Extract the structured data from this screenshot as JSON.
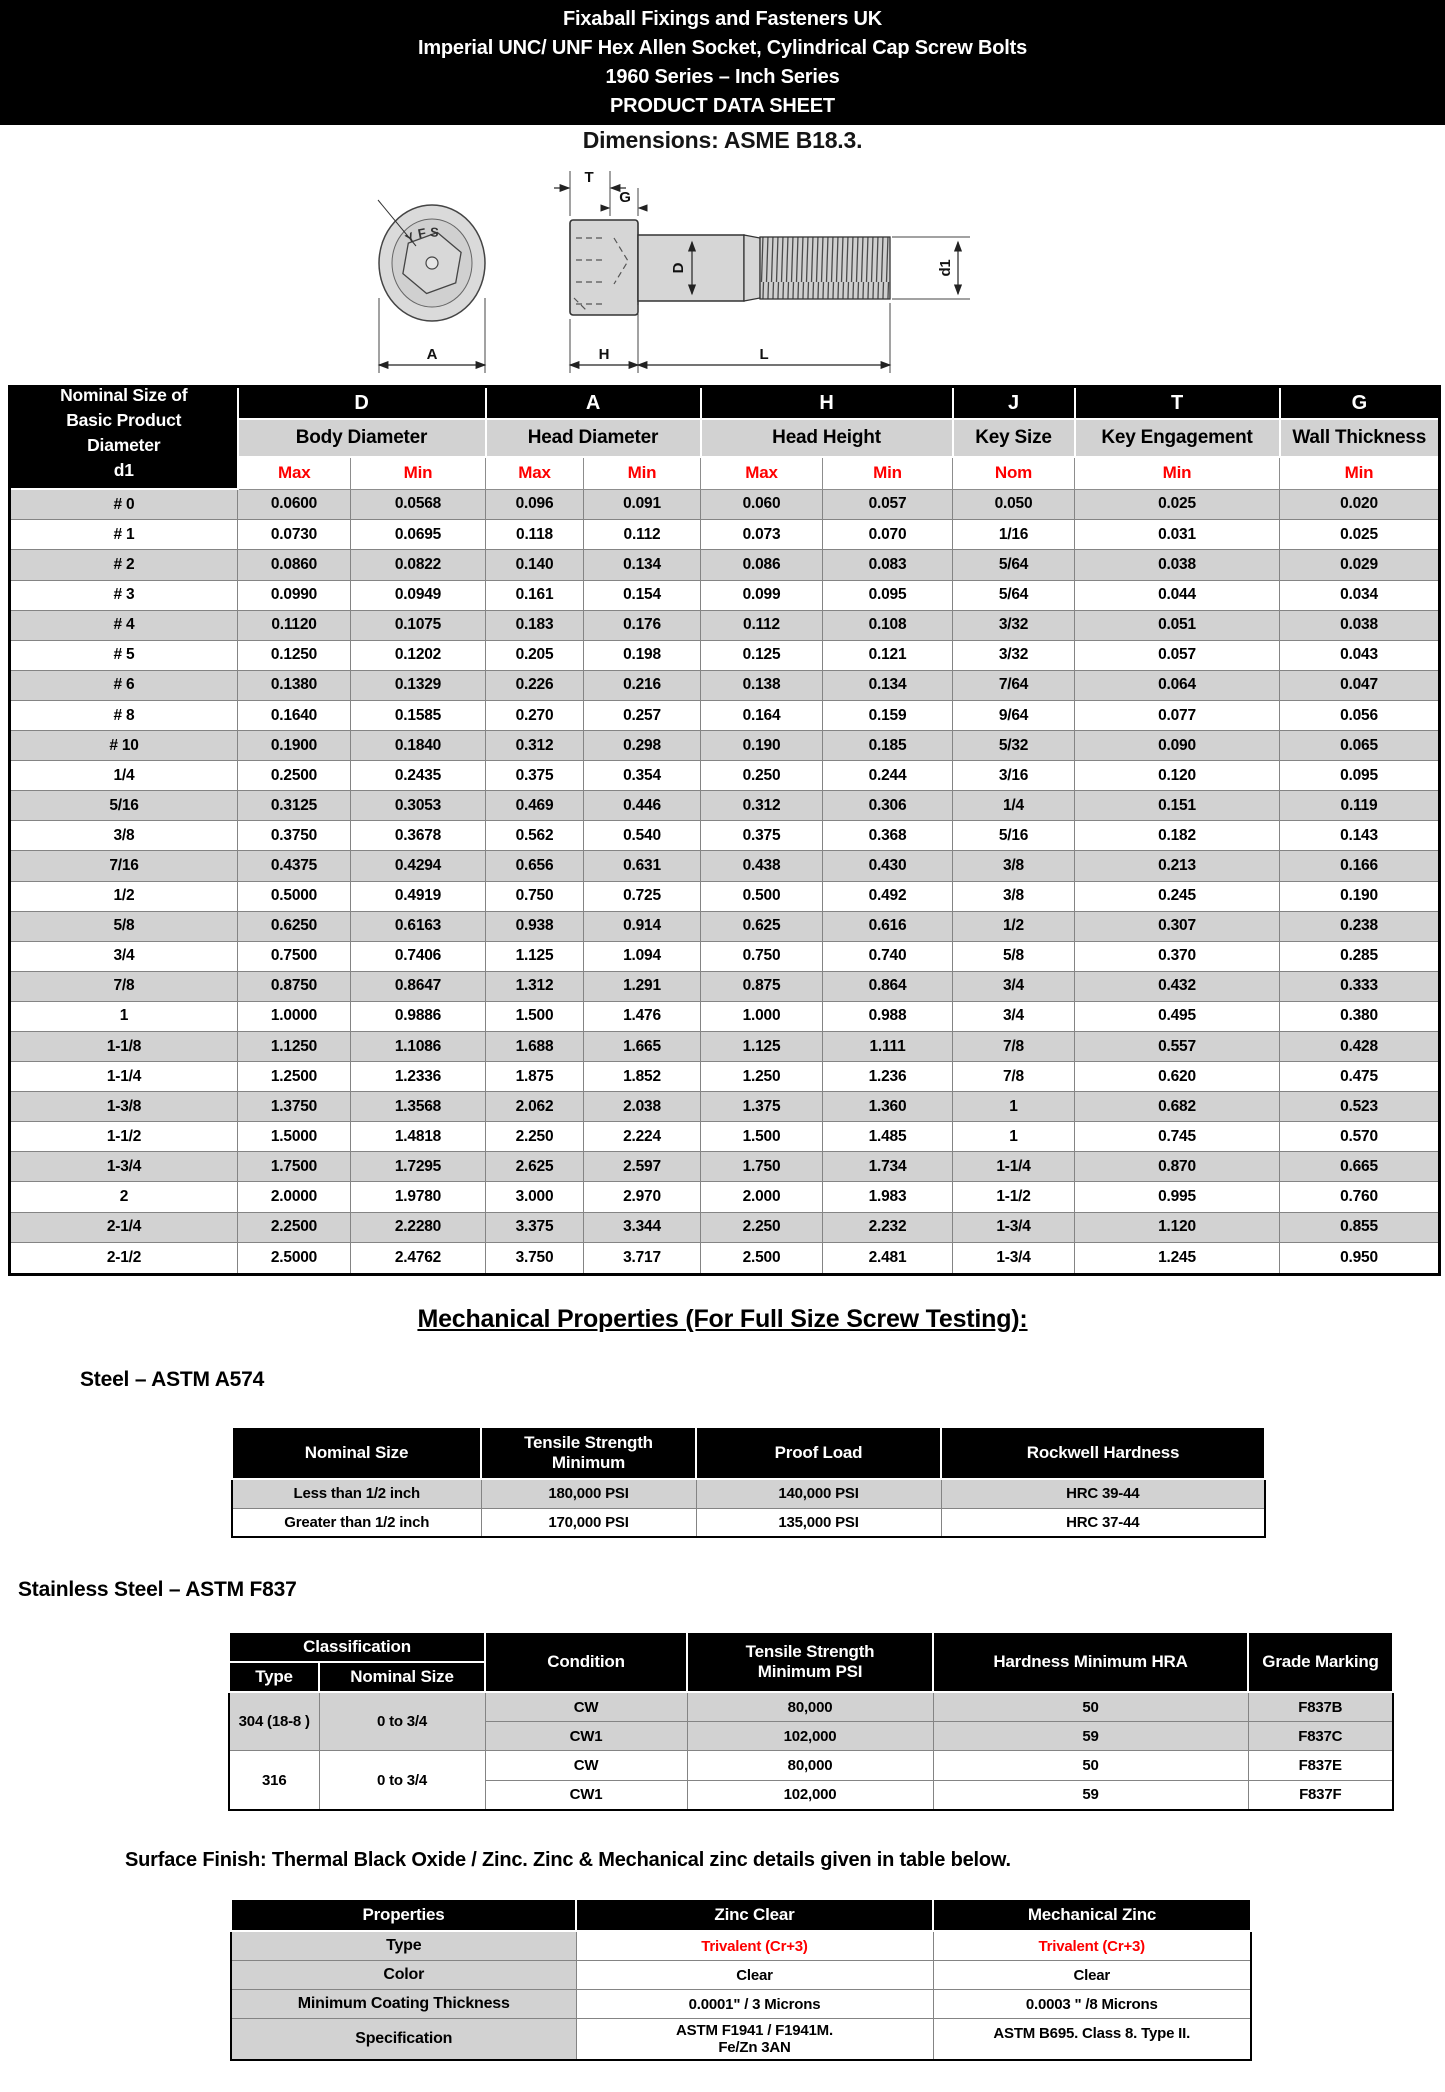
{
  "colors": {
    "accent_red": "#fe0000",
    "header_bg": "#000000",
    "row_gray": "#d2d2d2"
  },
  "header": {
    "line1": "Fixaball Fixings and Fasteners UK",
    "line2": "Imperial UNC/ UNF Hex Allen Socket, Cylindrical Cap Screw Bolts",
    "line3": "1960 Series – Inch Series",
    "line4": "PRODUCT DATA SHEET",
    "dimensions_note": "Dimensions: ASME B18.3."
  },
  "drawing": {
    "marking": "YFS",
    "labels": {
      "T": "T",
      "G": "G",
      "D": "D",
      "d1": "d1",
      "A": "A",
      "H": "H",
      "L": "L"
    }
  },
  "dim_table": {
    "corner_header": "Nominal Size of\nBasic Product\nDiameter\nd1",
    "groups": [
      {
        "letter": "D",
        "name": "Body Diameter"
      },
      {
        "letter": "A",
        "name": "Head Diameter"
      },
      {
        "letter": "H",
        "name": "Head Height"
      },
      {
        "letter": "J",
        "name": "Key Size"
      },
      {
        "letter": "T",
        "name": "Key Engagement"
      },
      {
        "letter": "G",
        "name": "Wall Thickness"
      }
    ],
    "subheads": [
      "Max",
      "Min",
      "Max",
      "Min",
      "Max",
      "Min",
      "Nom",
      "Min",
      "Min"
    ],
    "rows": [
      [
        "# 0",
        "0.0600",
        "0.0568",
        "0.096",
        "0.091",
        "0.060",
        "0.057",
        "0.050",
        "0.025",
        "0.020"
      ],
      [
        "# 1",
        "0.0730",
        "0.0695",
        "0.118",
        "0.112",
        "0.073",
        "0.070",
        "1/16",
        "0.031",
        "0.025"
      ],
      [
        "# 2",
        "0.0860",
        "0.0822",
        "0.140",
        "0.134",
        "0.086",
        "0.083",
        "5/64",
        "0.038",
        "0.029"
      ],
      [
        "# 3",
        "0.0990",
        "0.0949",
        "0.161",
        "0.154",
        "0.099",
        "0.095",
        "5/64",
        "0.044",
        "0.034"
      ],
      [
        "# 4",
        "0.1120",
        "0.1075",
        "0.183",
        "0.176",
        "0.112",
        "0.108",
        "3/32",
        "0.051",
        "0.038"
      ],
      [
        "# 5",
        "0.1250",
        "0.1202",
        "0.205",
        "0.198",
        "0.125",
        "0.121",
        "3/32",
        "0.057",
        "0.043"
      ],
      [
        "# 6",
        "0.1380",
        "0.1329",
        "0.226",
        "0.216",
        "0.138",
        "0.134",
        "7/64",
        "0.064",
        "0.047"
      ],
      [
        "# 8",
        "0.1640",
        "0.1585",
        "0.270",
        "0.257",
        "0.164",
        "0.159",
        "9/64",
        "0.077",
        "0.056"
      ],
      [
        "# 10",
        "0.1900",
        "0.1840",
        "0.312",
        "0.298",
        "0.190",
        "0.185",
        "5/32",
        "0.090",
        "0.065"
      ],
      [
        "1/4",
        "0.2500",
        "0.2435",
        "0.375",
        "0.354",
        "0.250",
        "0.244",
        "3/16",
        "0.120",
        "0.095"
      ],
      [
        "5/16",
        "0.3125",
        "0.3053",
        "0.469",
        "0.446",
        "0.312",
        "0.306",
        "1/4",
        "0.151",
        "0.119"
      ],
      [
        "3/8",
        "0.3750",
        "0.3678",
        "0.562",
        "0.540",
        "0.375",
        "0.368",
        "5/16",
        "0.182",
        "0.143"
      ],
      [
        "7/16",
        "0.4375",
        "0.4294",
        "0.656",
        "0.631",
        "0.438",
        "0.430",
        "3/8",
        "0.213",
        "0.166"
      ],
      [
        "1/2",
        "0.5000",
        "0.4919",
        "0.750",
        "0.725",
        "0.500",
        "0.492",
        "3/8",
        "0.245",
        "0.190"
      ],
      [
        "5/8",
        "0.6250",
        "0.6163",
        "0.938",
        "0.914",
        "0.625",
        "0.616",
        "1/2",
        "0.307",
        "0.238"
      ],
      [
        "3/4",
        "0.7500",
        "0.7406",
        "1.125",
        "1.094",
        "0.750",
        "0.740",
        "5/8",
        "0.370",
        "0.285"
      ],
      [
        "7/8",
        "0.8750",
        "0.8647",
        "1.312",
        "1.291",
        "0.875",
        "0.864",
        "3/4",
        "0.432",
        "0.333"
      ],
      [
        "1",
        "1.0000",
        "0.9886",
        "1.500",
        "1.476",
        "1.000",
        "0.988",
        "3/4",
        "0.495",
        "0.380"
      ],
      [
        "1-1/8",
        "1.1250",
        "1.1086",
        "1.688",
        "1.665",
        "1.125",
        "1.111",
        "7/8",
        "0.557",
        "0.428"
      ],
      [
        "1-1/4",
        "1.2500",
        "1.2336",
        "1.875",
        "1.852",
        "1.250",
        "1.236",
        "7/8",
        "0.620",
        "0.475"
      ],
      [
        "1-3/8",
        "1.3750",
        "1.3568",
        "2.062",
        "2.038",
        "1.375",
        "1.360",
        "1",
        "0.682",
        "0.523"
      ],
      [
        "1-1/2",
        "1.5000",
        "1.4818",
        "2.250",
        "2.224",
        "1.500",
        "1.485",
        "1",
        "0.745",
        "0.570"
      ],
      [
        "1-3/4",
        "1.7500",
        "1.7295",
        "2.625",
        "2.597",
        "1.750",
        "1.734",
        "1-1/4",
        "0.870",
        "0.665"
      ],
      [
        "2",
        "2.0000",
        "1.9780",
        "3.000",
        "2.970",
        "2.000",
        "1.983",
        "1-1/2",
        "0.995",
        "0.760"
      ],
      [
        "2-1/4",
        "2.2500",
        "2.2280",
        "3.375",
        "3.344",
        "2.250",
        "2.232",
        "1-3/4",
        "1.120",
        "0.855"
      ],
      [
        "2-1/2",
        "2.5000",
        "2.4762",
        "3.750",
        "3.717",
        "2.500",
        "2.481",
        "1-3/4",
        "1.245",
        "0.950"
      ]
    ]
  },
  "sections": {
    "mech_heading": "Mechanical Properties (For Full Size Screw Testing): ",
    "steel_heading": "Steel – ASTM A574",
    "stainless_heading": "Stainless Steel – ASTM F837",
    "surface_note": "Surface Finish: Thermal Black Oxide / Zinc. Zinc & Mechanical zinc details given in table below."
  },
  "steel_table": {
    "headers": [
      "Nominal Size",
      "Tensile Strength\nMinimum",
      "Proof Load",
      "Rockwell Hardness"
    ],
    "rows": [
      [
        "Less than 1/2 inch",
        "180,000 PSI",
        "140,000 PSI",
        "HRC 39-44"
      ],
      [
        "Greater than 1/2 inch",
        "170,000 PSI",
        "135,000 PSI",
        "HRC 37-44"
      ]
    ]
  },
  "stainless_table": {
    "classification_label": "Classification",
    "type_label": "Type",
    "nominal_label": "Nominal Size",
    "condition_label": "Condition",
    "tensile_label": "Tensile Strength\nMinimum PSI",
    "hardness_label": "Hardness Minimum HRA",
    "grade_label": "Grade Marking",
    "groups": [
      {
        "type": "304 (18-8 )",
        "size": "0 to 3/4",
        "rows": [
          {
            "condition": "CW",
            "tensile": "80,000",
            "hardness": "50",
            "grade": "F837B"
          },
          {
            "condition": "CW1",
            "tensile": "102,000",
            "hardness": "59",
            "grade": "F837C"
          }
        ]
      },
      {
        "type": "316",
        "size": "0 to 3/4",
        "rows": [
          {
            "condition": "CW",
            "tensile": "80,000",
            "hardness": "50",
            "grade": "F837E"
          },
          {
            "condition": "CW1",
            "tensile": "102,000",
            "hardness": "59",
            "grade": "F837F"
          }
        ]
      }
    ]
  },
  "finish_table": {
    "headers": [
      "Properties",
      "Zinc Clear",
      "Mechanical Zinc"
    ],
    "rows": [
      {
        "label": "Type",
        "zinc": "Trivalent (Cr+3)",
        "mech": "Trivalent (Cr+3)"
      },
      {
        "label": "Color",
        "zinc": "Clear",
        "mech": "Clear"
      },
      {
        "label": "Minimum Coating Thickness",
        "zinc": "0.0001\" / 3 Microns",
        "mech": "0.0003 \" /8 Microns"
      },
      {
        "label": "Specification",
        "zinc": "ASTM F1941 / F1941M.\nFe/Zn 3AN",
        "mech": "ASTM B695. Class 8. Type II."
      }
    ]
  }
}
